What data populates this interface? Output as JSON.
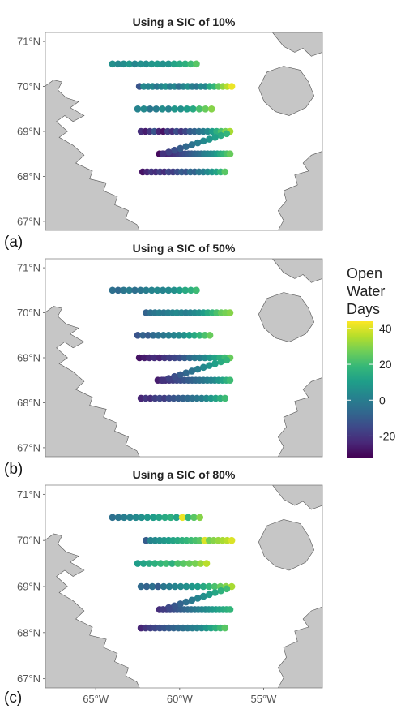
{
  "chart_data": {
    "type": "scatter",
    "panels": [
      {
        "label": "(a)",
        "title": "Using a SIC of 10%",
        "rows": [
          {
            "lat": 70.5,
            "lon_start": -64.0,
            "lon_end": -59.0,
            "values": [
              6,
              4,
              5,
              8,
              3,
              6,
              5,
              8,
              9,
              6,
              7,
              12,
              14,
              16,
              20,
              24
            ]
          },
          {
            "lat": 70.0,
            "lon_start": -62.4,
            "lon_end": -56.9,
            "values": [
              -12,
              4,
              2,
              3,
              -2,
              2,
              6,
              0,
              3,
              -4,
              2,
              6,
              0,
              -2,
              4,
              3,
              14,
              18,
              25,
              31,
              36,
              42
            ]
          },
          {
            "lat": 69.5,
            "lon_start": -62.5,
            "lon_end": -58.1,
            "values": [
              2,
              4,
              -2,
              0,
              5,
              2,
              8,
              6,
              10,
              14,
              22,
              26,
              30
            ]
          },
          {
            "lat": 69.0,
            "lon_start": -62.3,
            "lon_end": -57.0,
            "values": [
              -22,
              -26,
              -20,
              -12,
              -24,
              -28,
              -18,
              -22,
              -14,
              -20,
              -16,
              -10,
              -8,
              -4,
              0,
              4,
              10,
              16,
              22,
              28,
              34
            ]
          },
          {
            "lat": 68.5,
            "lon_start": -61.2,
            "lon_end": -57.0,
            "values": [
              -30,
              -28,
              -26,
              -24,
              -22,
              -20,
              -18,
              -16,
              -14,
              -12,
              -10,
              -8,
              -6,
              -4,
              0,
              2,
              4,
              6,
              10,
              14,
              18,
              22,
              26
            ]
          },
          {
            "lat": 68.1,
            "lon_start": -62.2,
            "lon_end": -57.3,
            "values": [
              -28,
              -24,
              -20,
              -22,
              -18,
              -22,
              -16,
              -18,
              -14,
              -10,
              -12,
              -6,
              -8,
              -2,
              0,
              4,
              8,
              12,
              18,
              24
            ]
          }
        ]
      },
      {
        "label": "(b)",
        "title": "Using a SIC of 50%",
        "rows": [
          {
            "lat": 70.5,
            "lon_start": -64.0,
            "lon_end": -59.0,
            "values": [
              -4,
              -6,
              -2,
              0,
              -4,
              -2,
              0,
              2,
              4,
              2,
              4,
              6,
              10,
              14,
              16,
              20
            ]
          },
          {
            "lat": 70.0,
            "lon_start": -62.0,
            "lon_end": -57.0,
            "values": [
              -8,
              -4,
              -2,
              0,
              -2,
              0,
              2,
              4,
              2,
              0,
              2,
              4,
              6,
              10,
              14,
              18,
              22,
              26,
              28,
              30
            ]
          },
          {
            "lat": 69.5,
            "lon_start": -62.5,
            "lon_end": -58.2,
            "values": [
              -12,
              -8,
              -10,
              -6,
              -4,
              -2,
              0,
              2,
              4,
              6,
              10,
              14,
              18,
              22,
              26
            ]
          },
          {
            "lat": 69.0,
            "lon_start": -62.4,
            "lon_end": -57.0,
            "values": [
              -28,
              -26,
              -24,
              -22,
              -24,
              -20,
              -18,
              -16,
              -14,
              -10,
              -6,
              -2,
              0,
              4,
              8,
              12,
              16,
              20,
              26
            ]
          },
          {
            "lat": 68.5,
            "lon_start": -61.3,
            "lon_end": -57.0,
            "values": [
              -26,
              -24,
              -22,
              -20,
              -18,
              -16,
              -14,
              -12,
              -10,
              -8,
              -6,
              -4,
              -2,
              0,
              2,
              4,
              8,
              12,
              16,
              20
            ]
          },
          {
            "lat": 68.1,
            "lon_start": -62.3,
            "lon_end": -57.3,
            "values": [
              -24,
              -20,
              -22,
              -18,
              -16,
              -18,
              -14,
              -12,
              -10,
              -8,
              -6,
              -4,
              -2,
              0,
              4,
              8,
              12,
              16,
              20
            ]
          }
        ]
      },
      {
        "label": "(c)",
        "title": "Using a SIC of 80%",
        "rows": [
          {
            "lat": 70.5,
            "lon_start": -64.0,
            "lon_end": -58.8,
            "values": [
              -4,
              -2,
              0,
              2,
              4,
              6,
              8,
              10,
              12,
              14,
              16,
              12,
              42,
              18,
              24,
              30
            ]
          },
          {
            "lat": 70.0,
            "lon_start": -62.0,
            "lon_end": -56.9,
            "values": [
              -10,
              2,
              4,
              6,
              8,
              10,
              12,
              14,
              16,
              18,
              20,
              22,
              24,
              40,
              28,
              30,
              32,
              34,
              36,
              40
            ]
          },
          {
            "lat": 69.5,
            "lon_start": -62.5,
            "lon_end": -58.4,
            "values": [
              10,
              12,
              14,
              16,
              18,
              20,
              16,
              22,
              24,
              26,
              28,
              32,
              36
            ]
          },
          {
            "lat": 69.0,
            "lon_start": -62.3,
            "lon_end": -56.9,
            "values": [
              -6,
              -8,
              -4,
              -10,
              -2,
              0,
              2,
              4,
              6,
              8,
              10,
              14,
              18,
              22,
              26,
              30,
              34
            ]
          },
          {
            "lat": 68.5,
            "lon_start": -61.2,
            "lon_end": -57.0,
            "values": [
              -22,
              -20,
              -18,
              -16,
              -14,
              -12,
              -10,
              -8,
              -6,
              -4,
              -2,
              0,
              2,
              4,
              6,
              8,
              10,
              12,
              14,
              16,
              18
            ]
          },
          {
            "lat": 68.1,
            "lon_start": -62.3,
            "lon_end": -57.3,
            "values": [
              -24,
              -20,
              -18,
              -16,
              -14,
              -12,
              -10,
              -8,
              -6,
              -4,
              -2,
              0,
              2,
              4,
              8,
              12,
              16,
              20,
              24
            ]
          }
        ]
      }
    ],
    "axes": {
      "x_label": "",
      "y_label": "",
      "xlim": [
        -68.0,
        -51.5
      ],
      "ylim": [
        66.8,
        71.2
      ],
      "x_ticks": [
        -65,
        -60,
        -55
      ],
      "x_tick_labels": [
        "65°W",
        "60°W",
        "55°W"
      ],
      "y_ticks": [
        67,
        68,
        69,
        70,
        71
      ],
      "y_tick_labels": [
        "67°N",
        "68°N",
        "69°N",
        "70°N",
        "71°N"
      ]
    },
    "legend": {
      "title_lines": [
        "Open",
        "Water",
        "Days"
      ],
      "range": [
        -32,
        44
      ],
      "ticks": [
        40,
        20,
        0,
        -20
      ],
      "tick_labels": [
        "40",
        "20",
        "0",
        "-20"
      ],
      "colormap": "viridis",
      "placement": "right"
    },
    "colors": {
      "land": "#c6c6c6",
      "land_stroke": "#555555",
      "viridis": [
        "#440154",
        "#482878",
        "#3e4989",
        "#31688e",
        "#26828e",
        "#1f9e89",
        "#35b779",
        "#6ece58",
        "#b5de2b",
        "#fde725"
      ]
    }
  }
}
